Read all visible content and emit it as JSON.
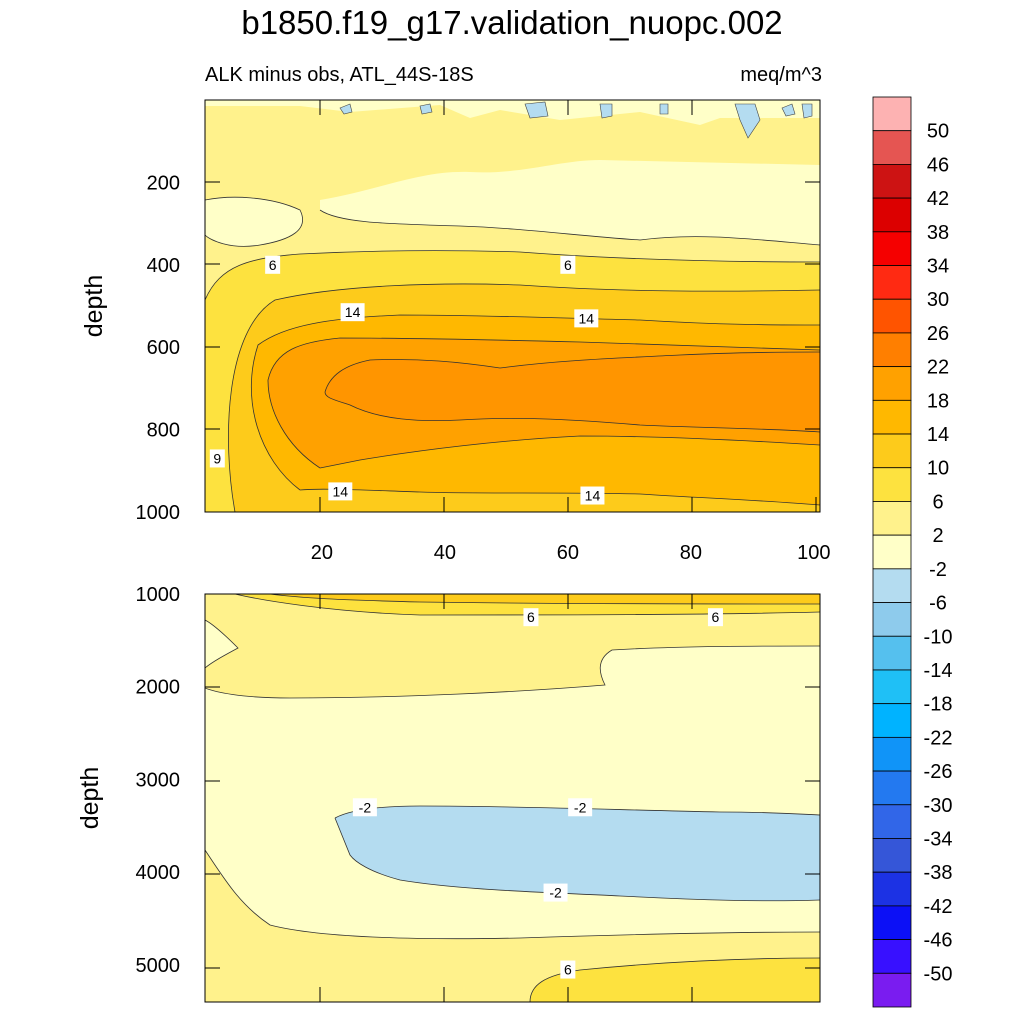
{
  "title": "b1850.f19_g17.validation_nuopc.002",
  "subtitle_left": "ALK minus obs, ATL_44S-18S",
  "subtitle_right": "meq/m^3",
  "chart_data": [
    {
      "panel": "upper",
      "type": "contour",
      "ylabel": "depth",
      "x_ticks": [
        20,
        40,
        60,
        80,
        100
      ],
      "y_ticks": [
        200,
        400,
        600,
        800,
        1000
      ],
      "xlim": [
        1,
        101
      ],
      "ylim": [
        1000,
        0
      ],
      "contour_labels": [
        {
          "text": "6",
          "x": 12,
          "y": 400
        },
        {
          "text": "6",
          "x": 60,
          "y": 400
        },
        {
          "text": "14",
          "x": 25,
          "y": 515
        },
        {
          "text": "14",
          "x": 63,
          "y": 530
        },
        {
          "text": "9",
          "x": 3,
          "y": 870
        },
        {
          "text": "14",
          "x": 23,
          "y": 950
        },
        {
          "text": "14",
          "x": 64,
          "y": 960
        }
      ]
    },
    {
      "panel": "lower",
      "type": "contour",
      "ylabel": "depth",
      "y_ticks": [
        1000,
        2000,
        3000,
        4000,
        5000
      ],
      "xlim": [
        1,
        101
      ],
      "ylim": [
        5400,
        1000
      ],
      "contour_labels": [
        {
          "text": "6",
          "x": 54,
          "y": 1250
        },
        {
          "text": "6",
          "x": 84,
          "y": 1250
        },
        {
          "text": "-2",
          "x": 27,
          "y": 3300
        },
        {
          "text": "-2",
          "x": 62,
          "y": 3300
        },
        {
          "text": "-2",
          "x": 58,
          "y": 4220
        },
        {
          "text": "6",
          "x": 60,
          "y": 5050
        }
      ]
    }
  ],
  "colorbar": {
    "labels": [
      "50",
      "46",
      "42",
      "38",
      "34",
      "30",
      "26",
      "22",
      "18",
      "14",
      "10",
      "6",
      "2",
      "-2",
      "-6",
      "-10",
      "-14",
      "-18",
      "-22",
      "-26",
      "-30",
      "-34",
      "-38",
      "-42",
      "-46",
      "-50"
    ],
    "colors": [
      "#fdb2b2",
      "#e55552",
      "#cd1313",
      "#dc0000",
      "#f50000",
      "#ff2a12",
      "#ff5400",
      "#ff7f00",
      "#ffa100",
      "#ffb800",
      "#fdcb1b",
      "#fde23f",
      "#fff28c",
      "#ffffc8",
      "#b4dcf0",
      "#8ecbec",
      "#55c0ee",
      "#1fc0f6",
      "#00b3ff",
      "#1094f8",
      "#2379f0",
      "#3166e8",
      "#3556d8",
      "#1c32e4",
      "#0c10f6",
      "#3810ff",
      "#7a1cf0"
    ]
  }
}
